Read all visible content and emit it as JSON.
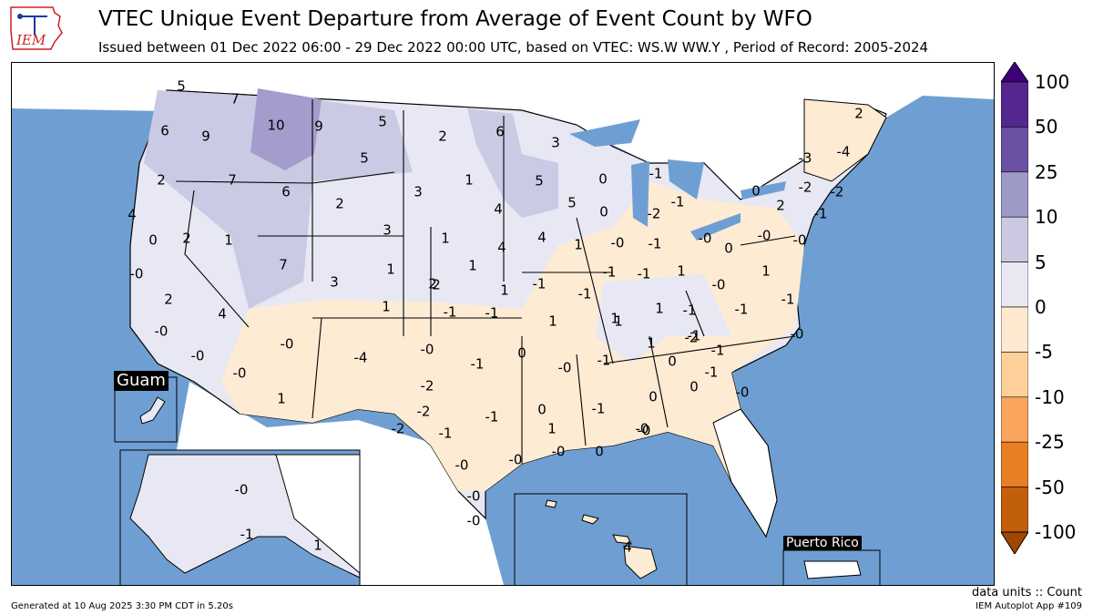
{
  "header": {
    "logo_text": "IEM",
    "title": "VTEC Unique Event Departure from Average of Event Count by WFO",
    "subtitle": "Issued between 01 Dec 2022 06:00 - 29 Dec 2022 00:00 UTC, based on VTEC: WS.W WW.Y  , Period of Record: 2005-2024"
  },
  "map": {
    "insets": {
      "guam": "Guam",
      "puerto_rico": "Puerto Rico"
    },
    "colors": {
      "ocean": "#6f9fd2",
      "land_none": "#ffffff",
      "bin_neg5_0": "#fdebd4",
      "bin_0_5": "#e8e8f4",
      "bin_5_10": "#cbcae4",
      "bin_10_25": "#a39ccc"
    },
    "wfo_values": [
      "5",
      "7",
      "6",
      "9",
      "10",
      "9",
      "5",
      "2",
      "6",
      "3",
      "-4",
      "2",
      "5",
      "2",
      "7",
      "6",
      "1",
      "5",
      "0",
      "-1",
      "-3",
      "-2",
      "4",
      "0",
      "2",
      "1",
      "3",
      "4",
      "3",
      "2",
      "1",
      "4",
      "5",
      "4",
      "-1",
      "-2",
      "-1",
      "0",
      "2",
      "-1",
      "-0",
      "-2",
      "-0",
      "0",
      "-0",
      "0",
      "-0",
      "1",
      "-0",
      "7",
      "3",
      "1",
      "1",
      "2",
      "1",
      "2",
      "1",
      "-1",
      "1",
      "1",
      "1",
      "-1",
      "1",
      "-1",
      "-1",
      "-0",
      "-1",
      "-1",
      "-1",
      "2",
      "1",
      "-0",
      "-1",
      "-0",
      "4",
      "-0",
      "-4",
      "-2",
      "-1",
      "-1",
      "0",
      "-1",
      "1",
      "1",
      "-1",
      "-2",
      "-0",
      "-1",
      "-0",
      "-0",
      "1",
      "-2",
      "-1",
      "-1",
      "-0",
      "0",
      "0",
      "0",
      "-0",
      "-1",
      "1",
      "-2",
      "-0",
      "-0",
      "-0",
      "0",
      "-0",
      "-0",
      "0",
      "-0",
      "-1",
      "-0",
      "-0",
      "-1",
      "1",
      "4",
      "-2",
      "-1",
      "-0",
      "0",
      "-1",
      "-0"
    ]
  },
  "colorbar": {
    "title": "data units :: Count",
    "ticks": [
      "100",
      "50",
      "25",
      "10",
      "5",
      "0",
      "-5",
      "-10",
      "-25",
      "-50",
      "-100"
    ],
    "colors_top_to_bottom": [
      "#3f007d",
      "#54278f",
      "#6a51a3",
      "#9e9ac8",
      "#cbc9e2",
      "#e8e7f2",
      "#fee9d0",
      "#fdd09b",
      "#f9a55d",
      "#e97f24",
      "#c25f0a",
      "#a04703"
    ]
  },
  "footer": {
    "generated": "Generated at 10 Aug 2025 3:30 PM CDT in 5.20s",
    "app": "IEM Autoplot App #109"
  }
}
